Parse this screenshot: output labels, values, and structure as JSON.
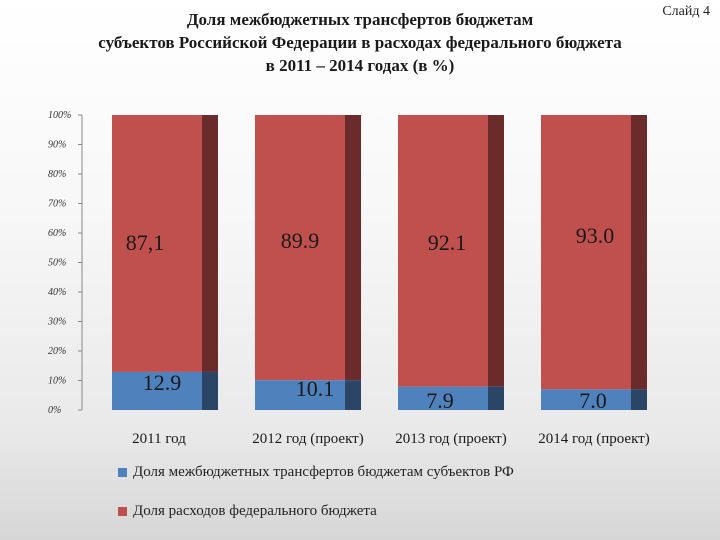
{
  "slide_label": "Слайд 4",
  "title_lines": [
    "Доля межбюджетных трансфертов бюджетам",
    "субъектов Российской Федерации в расходах федерального бюджета",
    "в 2011 – 2014 годах (в %)"
  ],
  "colors": {
    "transfers": "#4f81bd",
    "transfers_side": "#2b4566",
    "budget": "#c0504d",
    "budget_side": "#6a2b2a"
  },
  "chart_data": {
    "type": "bar",
    "stacked": "percent",
    "categories": [
      "2011 год",
      "2012 год (проект)",
      "2013 год (проект)",
      "2014 год (проект)"
    ],
    "series": [
      {
        "name": "Доля межбюджетных трансфертов бюджетам субъектов РФ",
        "values": [
          12.9,
          10.1,
          7.9,
          7.0
        ],
        "labels": [
          "12.9",
          "10.1",
          "7.9",
          "7.0"
        ]
      },
      {
        "name": "Доля расходов федерального бюджета",
        "values": [
          87.1,
          89.9,
          92.1,
          93.0
        ],
        "labels": [
          "87,1",
          "89.9",
          "92.1",
          "93.0"
        ]
      }
    ],
    "y_ticks": [
      "0%",
      "10%",
      "20%",
      "30%",
      "40%",
      "50%",
      "60%",
      "70%",
      "80%",
      "90%",
      "100%"
    ],
    "ylim": [
      0,
      100
    ],
    "legend_position": "bottom"
  }
}
